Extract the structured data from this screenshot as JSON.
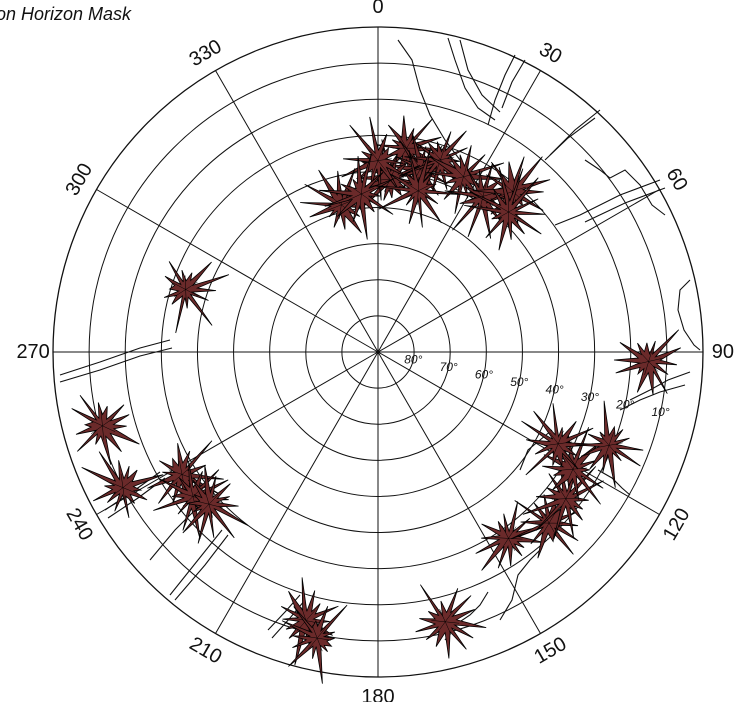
{
  "chart_data": {
    "type": "scatter",
    "projection": "polar-skyplot",
    "title": "on Horizon Mask",
    "azimuth_labels": [
      "0",
      "30",
      "60",
      "90",
      "120",
      "150",
      "180",
      "210",
      "240",
      "270",
      "300",
      "330"
    ],
    "elevation_labels": [
      "80°",
      "70°",
      "60°",
      "50°",
      "40°",
      "30°",
      "20°",
      "10°"
    ],
    "elevation_rings_deg": [
      0,
      10,
      20,
      30,
      40,
      50,
      60,
      70,
      80
    ],
    "marker": {
      "shape": "star-burst",
      "fill": "#6b2a2a",
      "stroke": "#000000"
    },
    "points": [
      {
        "az": 8,
        "el": 33
      },
      {
        "az": 13,
        "el": 38
      },
      {
        "az": 4,
        "el": 42
      },
      {
        "az": 360,
        "el": 37
      },
      {
        "az": 18,
        "el": 34
      },
      {
        "az": 26,
        "el": 36
      },
      {
        "az": 34,
        "el": 38
      },
      {
        "az": 40,
        "el": 32
      },
      {
        "az": 346,
        "el": 48
      },
      {
        "az": 354,
        "el": 46
      },
      {
        "az": 14,
        "el": 44
      },
      {
        "az": 43,
        "el": 37
      },
      {
        "az": 288,
        "el": 34
      },
      {
        "az": 255,
        "el": 11
      },
      {
        "az": 242,
        "el": 10
      },
      {
        "az": 238,
        "el": 26
      },
      {
        "az": 232,
        "el": 25
      },
      {
        "az": 228,
        "el": 27
      },
      {
        "az": 195,
        "el": 13
      },
      {
        "az": 192,
        "el": 9
      },
      {
        "az": 166,
        "el": 13
      },
      {
        "az": 145,
        "el": 27
      },
      {
        "az": 135,
        "el": 23
      },
      {
        "az": 128,
        "el": 24
      },
      {
        "az": 121,
        "el": 27
      },
      {
        "az": 117,
        "el": 34
      },
      {
        "az": 112,
        "el": 21
      },
      {
        "az": 92,
        "el": 15
      }
    ],
    "horizon_mask_lines": "irregular thin lines near the horizon",
    "grid": true
  }
}
